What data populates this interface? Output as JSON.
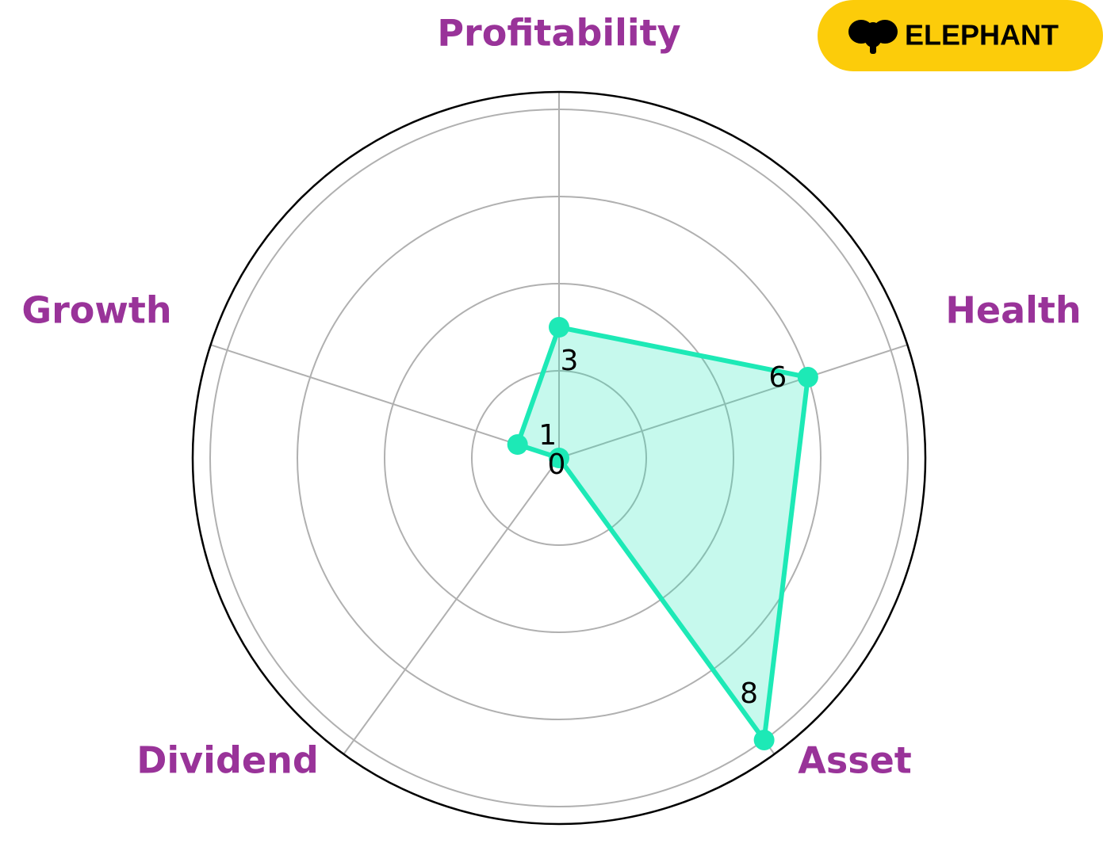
{
  "logo": {
    "text": "ELEPHANT"
  },
  "chart_data": {
    "type": "radar",
    "categories": [
      "Profitability",
      "Health",
      "Asset",
      "Dividend",
      "Growth"
    ],
    "values": [
      3,
      6,
      8,
      0,
      1
    ],
    "color": "#1de9b6",
    "label_color": "#993399",
    "ylim": [
      0,
      8.4
    ],
    "yticks": [
      2,
      4,
      6,
      8
    ],
    "grid": true
  }
}
